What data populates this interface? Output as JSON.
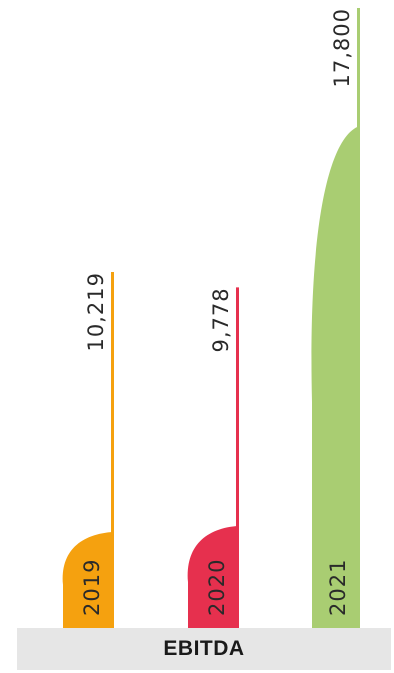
{
  "chart_data": {
    "type": "area",
    "title": "EBITDA",
    "categories": [
      "2019",
      "2020",
      "2021"
    ],
    "values": [
      10219,
      9778,
      17800
    ],
    "value_labels": [
      "10,219",
      "9,778",
      "17,800"
    ],
    "colors": [
      "#f5a10f",
      "#e6304e",
      "#a9cd72"
    ],
    "grid": false,
    "legend": "none"
  }
}
